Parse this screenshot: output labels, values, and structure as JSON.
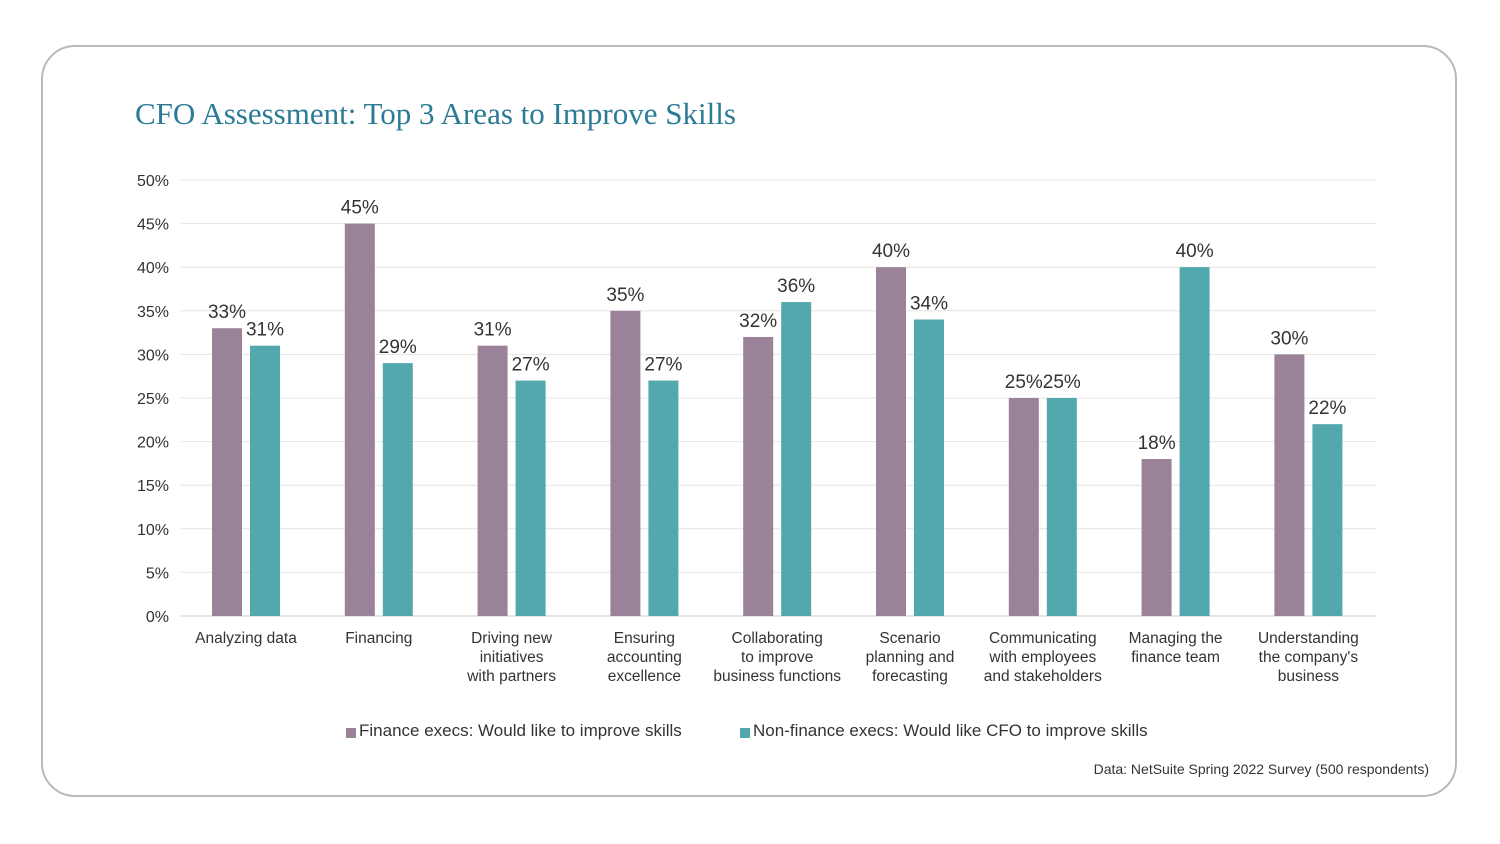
{
  "chart_data": {
    "type": "bar",
    "title": "CFO Assessment: Top 3 Areas to Improve Skills",
    "categories": [
      "Analyzing data",
      "Financing",
      "Driving new initiatives with partners",
      "Ensuring accounting excellence",
      "Collaborating to improve business functions",
      "Scenario planning and forecasting",
      "Communicating with employees and stakeholders",
      "Managing the finance team",
      "Understanding the company's business"
    ],
    "category_lines": [
      [
        "Analyzing data"
      ],
      [
        "Financing"
      ],
      [
        "Driving new",
        "initiatives",
        "with partners"
      ],
      [
        "Ensuring",
        "accounting",
        "excellence"
      ],
      [
        "Collaborating",
        "to improve",
        "business functions"
      ],
      [
        "Scenario",
        "planning and",
        "forecasting"
      ],
      [
        "Communicating",
        "with employees",
        "and stakeholders"
      ],
      [
        "Managing the",
        "finance team"
      ],
      [
        "Understanding",
        "the company's",
        "business"
      ]
    ],
    "series": [
      {
        "name": "Finance execs: Would like to improve skills",
        "color": "#9a8298",
        "values": [
          33,
          45,
          31,
          35,
          32,
          40,
          25,
          18,
          30
        ]
      },
      {
        "name": "Non-finance execs: Would like CFO to improve skills",
        "color": "#52a8ad",
        "values": [
          31,
          29,
          27,
          27,
          36,
          34,
          25,
          40,
          22
        ]
      }
    ],
    "ylim": [
      0,
      50
    ],
    "yticks": [
      0,
      5,
      10,
      15,
      20,
      25,
      30,
      35,
      40,
      45,
      50
    ],
    "value_suffix": "%",
    "xlabel": "",
    "ylabel": "",
    "grid": true,
    "legend_position": "bottom-center"
  },
  "source_note": "Data: NetSuite Spring 2022 Survey (500 respondents)"
}
